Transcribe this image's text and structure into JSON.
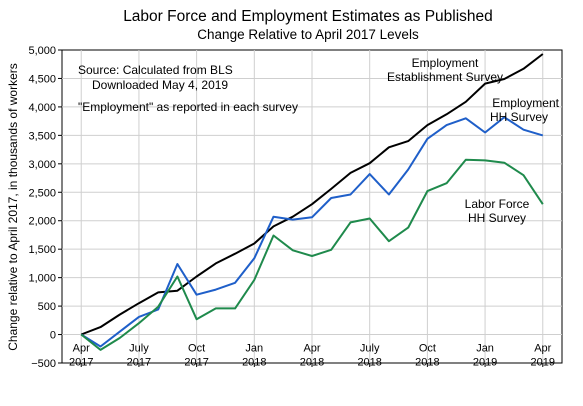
{
  "chart_data": {
    "type": "line",
    "title": "Labor Force and Employment Estimates as Published",
    "subtitle": "Change Relative to April 2017 Levels",
    "ylabel": "Change relative to April 2017, in thousands of workers",
    "xlabel": "",
    "ylim": [
      -500,
      5000
    ],
    "xlim": [
      "2017-03",
      "2019-05"
    ],
    "y_ticks": [
      "−500",
      "0",
      "500",
      "1,000",
      "1,500",
      "2,000",
      "2,500",
      "3,000",
      "3,500",
      "4,000",
      "4,500",
      "5,000"
    ],
    "y_tick_values": [
      -500,
      0,
      500,
      1000,
      1500,
      2000,
      2500,
      3000,
      3500,
      4000,
      4500,
      5000
    ],
    "x_ticks": [
      {
        "date": "2017-04",
        "line1": "Apr",
        "line2": "2017"
      },
      {
        "date": "2017-07",
        "line1": "July",
        "line2": "2017"
      },
      {
        "date": "2017-10",
        "line1": "Oct",
        "line2": "2017"
      },
      {
        "date": "2018-01",
        "line1": "Jan",
        "line2": "2018"
      },
      {
        "date": "2018-04",
        "line1": "Apr",
        "line2": "2018"
      },
      {
        "date": "2018-07",
        "line1": "July",
        "line2": "2018"
      },
      {
        "date": "2018-10",
        "line1": "Oct",
        "line2": "2018"
      },
      {
        "date": "2019-01",
        "line1": "Jan",
        "line2": "2019"
      },
      {
        "date": "2019-04",
        "line1": "Apr",
        "line2": "2019"
      }
    ],
    "grid": true,
    "annotations": [
      "Source:  Calculated from BLS",
      "Downloaded May 4, 2019",
      "\"Employment\" as reported in each survey"
    ],
    "x": [
      "2017-04",
      "2017-05",
      "2017-06",
      "2017-07",
      "2017-08",
      "2017-09",
      "2017-10",
      "2017-11",
      "2017-12",
      "2018-01",
      "2018-02",
      "2018-03",
      "2018-04",
      "2018-05",
      "2018-06",
      "2018-07",
      "2018-08",
      "2018-09",
      "2018-10",
      "2018-11",
      "2018-12",
      "2019-01",
      "2019-02",
      "2019-03",
      "2019-04"
    ],
    "series": [
      {
        "name": "Employment Establishment Survey",
        "label_lines": [
          "Employment",
          "Establishment Survey"
        ],
        "color": "#000000",
        "values": [
          0,
          130,
          350,
          550,
          740,
          770,
          1020,
          1250,
          1420,
          1600,
          1900,
          2070,
          2290,
          2560,
          2840,
          3010,
          3290,
          3400,
          3680,
          3870,
          4090,
          4410,
          4490,
          4670,
          4930
        ]
      },
      {
        "name": "Employment HH Survey",
        "label_lines": [
          "Employment",
          "HH Survey"
        ],
        "color": "#1f5fc9",
        "values": [
          0,
          -210,
          50,
          310,
          440,
          1240,
          700,
          790,
          910,
          1340,
          2070,
          2020,
          2060,
          2400,
          2460,
          2820,
          2460,
          2900,
          3440,
          3680,
          3800,
          3550,
          3820,
          3600,
          3500
        ]
      },
      {
        "name": "Labor Force HH Survey",
        "label_lines": [
          "Labor Force",
          "HH Survey"
        ],
        "color": "#1f8a4c",
        "values": [
          0,
          -270,
          -60,
          200,
          490,
          1020,
          270,
          460,
          460,
          960,
          1740,
          1480,
          1380,
          1490,
          1970,
          2040,
          1640,
          1880,
          2520,
          2660,
          3070,
          3060,
          3020,
          2800,
          2290
        ]
      }
    ]
  }
}
